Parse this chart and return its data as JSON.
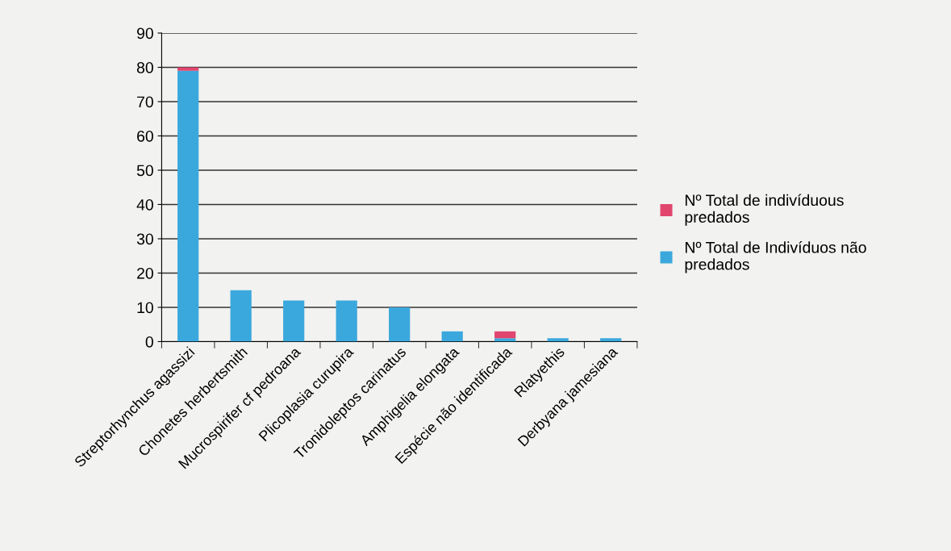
{
  "chart_data": {
    "type": "bar",
    "stacked": true,
    "categories": [
      "Streptorhynchus agassizi",
      "Chonetes herbertsmith",
      "Mucrospirifer cf pedroana",
      "Plicoplasia curupira",
      "Tronidoleptos carinatus",
      "Amphigelia elongata",
      "Espécie não identificada",
      "Rlatyethis",
      "Derbyana jamesiana"
    ],
    "series": [
      {
        "name": "Nº Total de Indivíduos não predados",
        "color": "#3aa8dc",
        "values": [
          79,
          15,
          12,
          12,
          10,
          3,
          1,
          1,
          1
        ]
      },
      {
        "name": "Nº Total de indivíduous predados",
        "color": "#e0466e",
        "values": [
          1,
          0,
          0,
          0,
          0,
          0,
          2,
          0,
          0
        ]
      }
    ],
    "ylim": [
      0,
      90
    ],
    "yticks": [
      0,
      10,
      20,
      30,
      40,
      50,
      60,
      70,
      80,
      90
    ],
    "grid": "y",
    "legend": "right"
  }
}
